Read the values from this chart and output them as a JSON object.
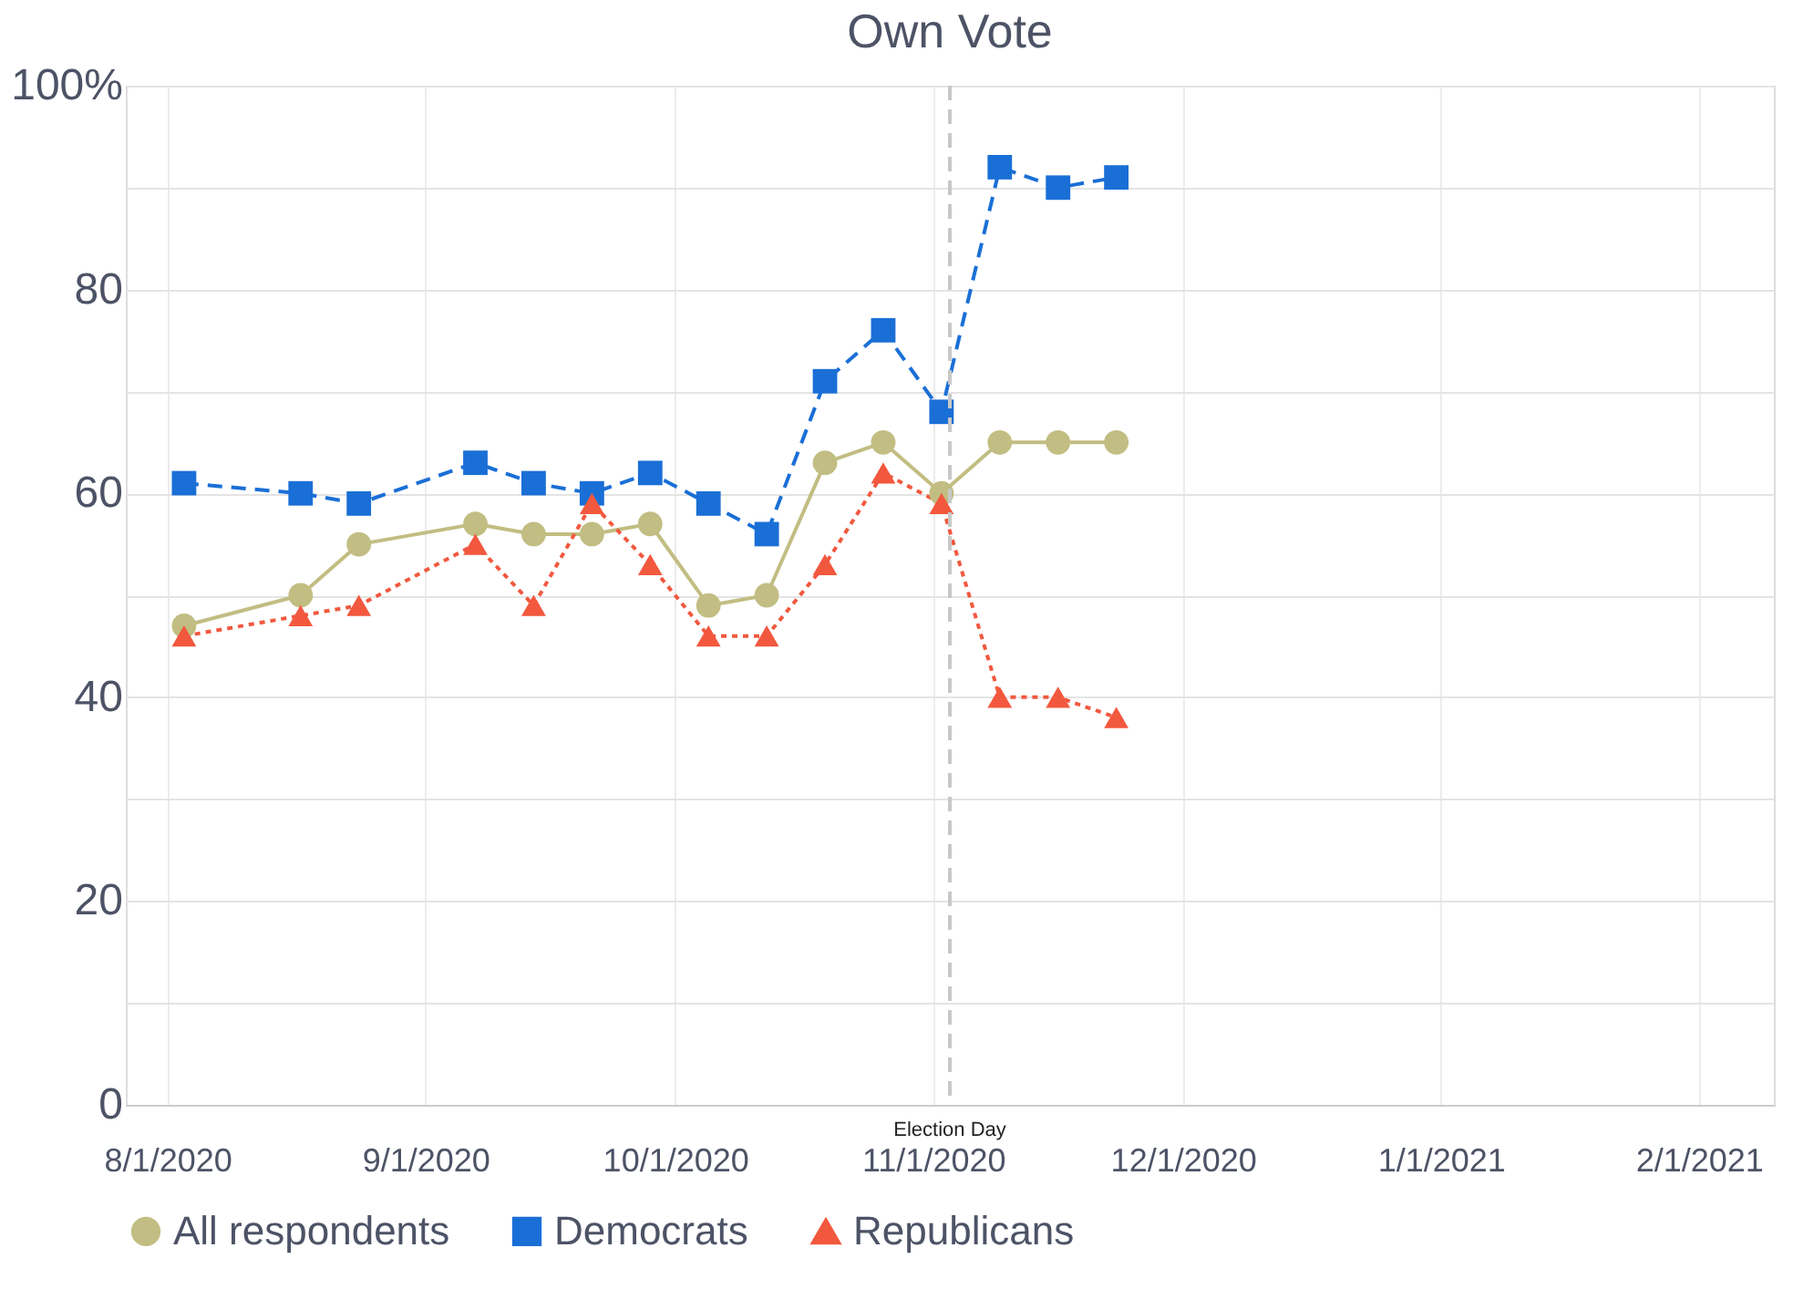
{
  "chart_data": {
    "type": "line",
    "title": "Own Vote",
    "x": [
      "2020-08-03",
      "2020-08-17",
      "2020-08-24",
      "2020-09-07",
      "2020-09-14",
      "2020-09-21",
      "2020-09-28",
      "2020-10-05",
      "2020-10-12",
      "2020-10-19",
      "2020-10-26",
      "2020-11-02",
      "2020-11-09",
      "2020-11-16",
      "2020-11-23"
    ],
    "series": [
      {
        "name": "All respondents",
        "color": "#c2bd82",
        "marker": "circle",
        "line_style": "solid",
        "values": [
          47,
          50,
          55,
          57,
          56,
          56,
          57,
          49,
          50,
          63,
          65,
          60,
          65,
          65,
          65
        ]
      },
      {
        "name": "Democrats",
        "color": "#1a6fd6",
        "marker": "square",
        "line_style": "dashed",
        "values": [
          61,
          60,
          59,
          63,
          61,
          60,
          62,
          59,
          56,
          71,
          76,
          68,
          92,
          90,
          91
        ]
      },
      {
        "name": "Republicans",
        "color": "#f2583e",
        "marker": "triangle",
        "line_style": "dotted",
        "values": [
          46,
          48,
          49,
          55,
          49,
          59,
          53,
          46,
          46,
          53,
          62,
          59,
          40,
          40,
          38
        ]
      }
    ],
    "xlim": [
      "2020-07-27",
      "2021-02-10"
    ],
    "xticks": [
      {
        "value": "2020-08-01",
        "label": "8/1/2020"
      },
      {
        "value": "2020-09-01",
        "label": "9/1/2020"
      },
      {
        "value": "2020-10-01",
        "label": "10/1/2020"
      },
      {
        "value": "2020-11-01",
        "label": "11/1/2020"
      },
      {
        "value": "2020-12-01",
        "label": "12/1/2020"
      },
      {
        "value": "2021-01-01",
        "label": "1/1/2021"
      },
      {
        "value": "2021-02-01",
        "label": "2/1/2021"
      }
    ],
    "ylim": [
      0,
      100
    ],
    "yticks": [
      {
        "value": 0,
        "label": "0"
      },
      {
        "value": 10,
        "label": null
      },
      {
        "value": 20,
        "label": "20"
      },
      {
        "value": 30,
        "label": null
      },
      {
        "value": 40,
        "label": "40"
      },
      {
        "value": 50,
        "label": null
      },
      {
        "value": 60,
        "label": "60"
      },
      {
        "value": 70,
        "label": null
      },
      {
        "value": 80,
        "label": "80"
      },
      {
        "value": 90,
        "label": null
      },
      {
        "value": 100,
        "label": "100%"
      }
    ],
    "ref_lines": [
      {
        "axis": "x",
        "value": "2020-11-03",
        "label": "Election Day",
        "color": "#c8c8c8",
        "line_style": "dashed"
      }
    ],
    "grid": true,
    "legend": "bottom"
  }
}
